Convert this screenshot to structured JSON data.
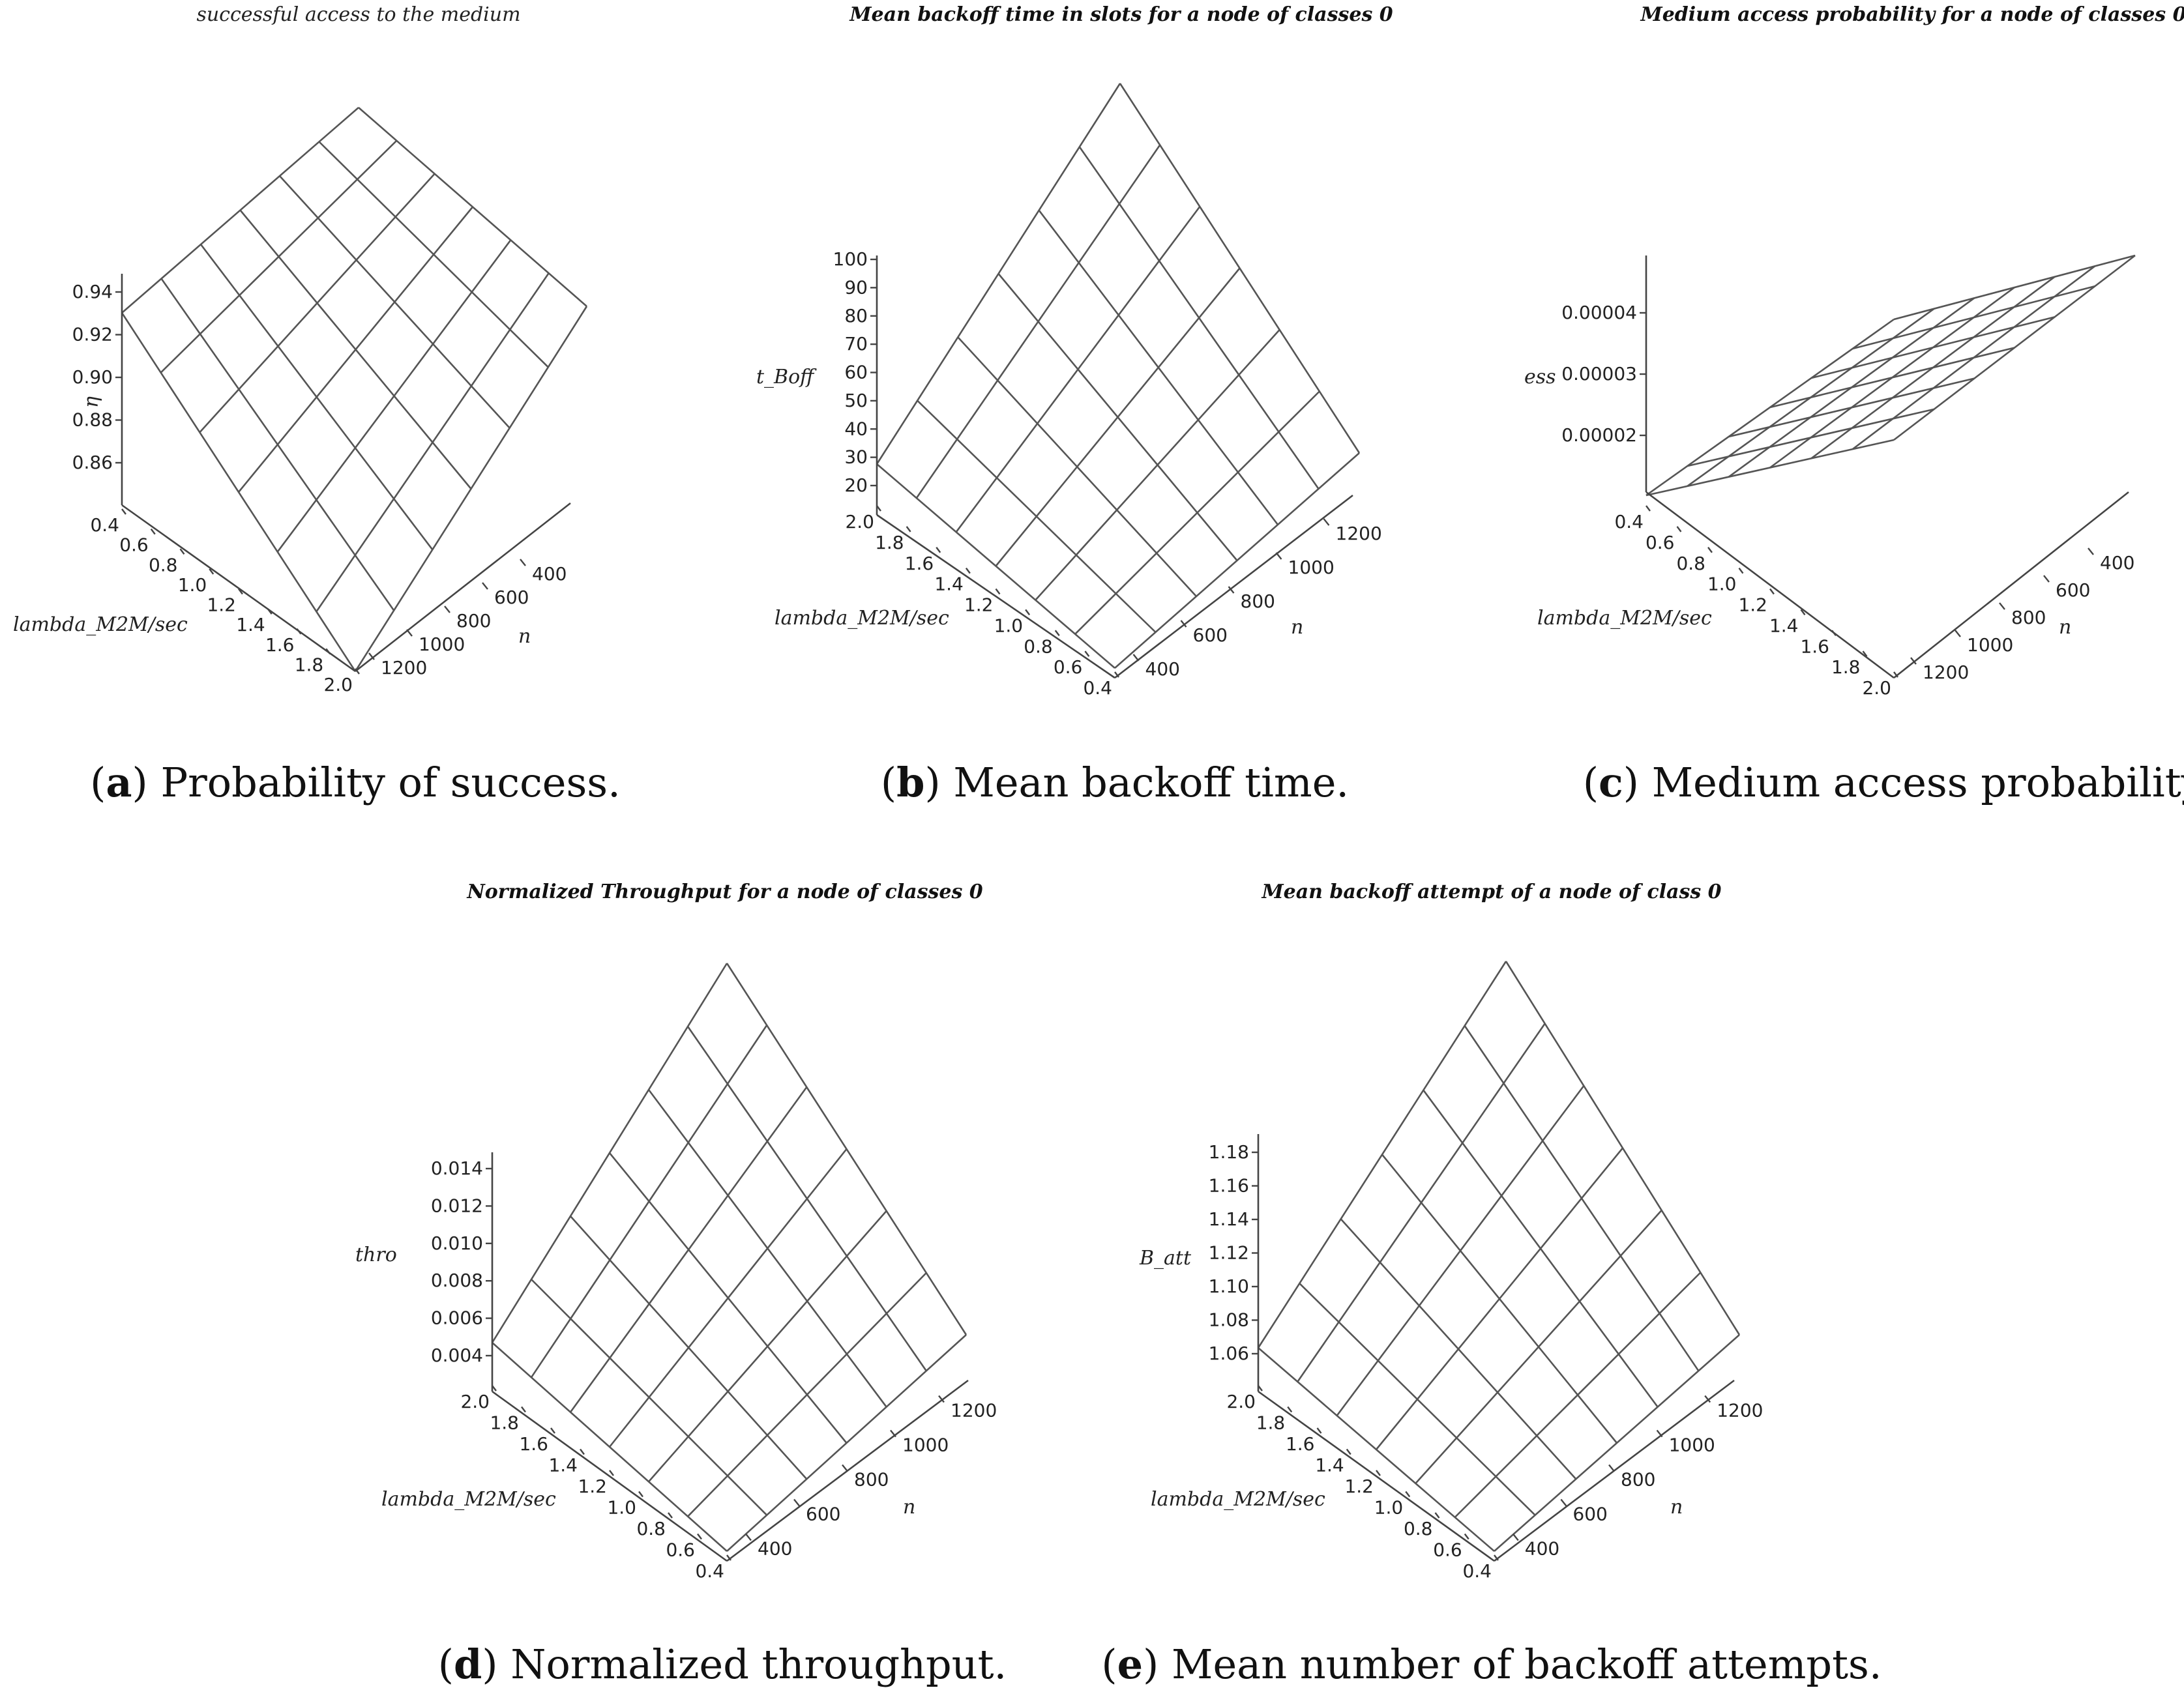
{
  "chart_data": [
    {
      "type": "surface3d",
      "title": "successful access to the medium",
      "caption_letter": "a",
      "caption_text": "Probability of success.",
      "xlabel": "lambda_M2M/sec",
      "ylabel": "n",
      "zlabel": "η",
      "x_ticks": [
        "0.4",
        "0.6",
        "0.8",
        "1.0",
        "1.2",
        "1.4",
        "1.6",
        "1.8",
        "2.0"
      ],
      "y_ticks": [
        "400",
        "600",
        "800",
        "1000",
        "1200"
      ],
      "z_ticks": [
        "0.94",
        "0.92",
        "0.90",
        "0.88",
        "0.86"
      ],
      "xlim": [
        0.4,
        2.0
      ],
      "ylim": [
        300,
        1300
      ],
      "zlim": [
        0.85,
        0.94
      ],
      "corners": {
        "x_min_n_min": 0.93,
        "x_min_n_max": 0.94,
        "x_max_n_min": 0.88,
        "x_max_n_max": 0.85
      }
    },
    {
      "type": "surface3d",
      "title": "Mean backoff time in slots for a node of  classes 0",
      "caption_letter": "b",
      "caption_text": "Mean backoff time.",
      "xlabel": "lambda_M2M/sec",
      "ylabel": "n",
      "zlabel": "t_Boff",
      "x_ticks": [
        "2.0",
        "1.8",
        "1.6",
        "1.4",
        "1.2",
        "1.0",
        "0.8",
        "0.6",
        "0.4"
      ],
      "y_ticks": [
        "400",
        "600",
        "800",
        "1000",
        "1200"
      ],
      "z_ticks": [
        "100",
        "90",
        "80",
        "70",
        "60",
        "50",
        "40",
        "30",
        "20"
      ],
      "xlim": [
        0.4,
        2.0
      ],
      "ylim": [
        300,
        1300
      ],
      "zlim": [
        15,
        100
      ],
      "corners": {
        "x_min_n_min": 15,
        "x_min_n_max": 32,
        "x_max_n_min": 27,
        "x_max_n_max": 100
      }
    },
    {
      "type": "surface3d",
      "title": "Medium access probability for a node of  classes 0",
      "caption_letter": "c",
      "caption_text": "Medium access probability.",
      "xlabel": "lambda_M2M/sec",
      "ylabel": "n",
      "zlabel": "ess",
      "x_ticks": [
        "0.4",
        "0.6",
        "0.8",
        "1.0",
        "1.2",
        "1.4",
        "1.6",
        "1.8",
        "2.0"
      ],
      "y_ticks": [
        "400",
        "600",
        "800",
        "1000",
        "1200"
      ],
      "z_ticks": [
        "0.00004",
        "0.00003",
        "0.00002"
      ],
      "xlim": [
        0.4,
        2.0
      ],
      "ylim": [
        300,
        1300
      ],
      "zlim": [
        1e-05,
        4e-05
      ],
      "corners": {
        "x_min_n_min": 1e-05,
        "x_min_n_max": 2e-05,
        "x_max_n_min": 3e-05,
        "x_max_n_max": 4e-05
      }
    },
    {
      "type": "surface3d",
      "title": "Normalized Throughput for a node of  classes 0",
      "caption_letter": "d",
      "caption_text": "Normalized throughput.",
      "xlabel": "lambda_M2M/sec",
      "ylabel": "n",
      "zlabel": "thro",
      "x_ticks": [
        "2.0",
        "1.8",
        "1.6",
        "1.4",
        "1.2",
        "1.0",
        "0.8",
        "0.6",
        "0.4"
      ],
      "y_ticks": [
        "400",
        "600",
        "800",
        "1000",
        "1200"
      ],
      "z_ticks": [
        "0.014",
        "0.012",
        "0.010",
        "0.008",
        "0.006",
        "0.004"
      ],
      "xlim": [
        0.4,
        2.0
      ],
      "ylim": [
        300,
        1300
      ],
      "zlim": [
        0.001,
        0.016
      ],
      "corners": {
        "x_min_n_min": 0.001,
        "x_min_n_max": 0.006,
        "x_max_n_min": 0.0049,
        "x_max_n_max": 0.016
      }
    },
    {
      "type": "surface3d",
      "title": "Mean backoff attempt of a node of class 0",
      "caption_letter": "e",
      "caption_text": "Mean number of backoff attempts.",
      "xlabel": "lambda_M2M/sec",
      "ylabel": "n",
      "zlabel": "B_att",
      "x_ticks": [
        "2.0",
        "1.8",
        "1.6",
        "1.4",
        "1.2",
        "1.0",
        "0.8",
        "0.6",
        "0.4"
      ],
      "y_ticks": [
        "400",
        "600",
        "800",
        "1000",
        "1200"
      ],
      "z_ticks": [
        "1.18",
        "1.16",
        "1.14",
        "1.12",
        "1.10",
        "1.08",
        "1.06"
      ],
      "xlim": [
        0.4,
        2.0
      ],
      "ylim": [
        300,
        1300
      ],
      "zlim": [
        1.02,
        1.2
      ],
      "corners": {
        "x_min_n_min": 1.02,
        "x_min_n_max": 1.06,
        "x_max_n_min": 1.075,
        "x_max_n_max": 1.2
      }
    }
  ]
}
